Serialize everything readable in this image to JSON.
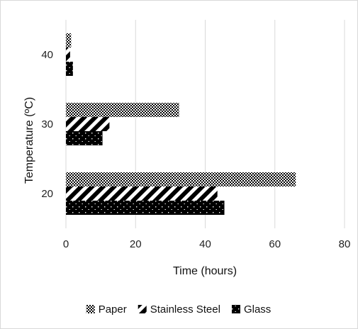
{
  "chart_data": {
    "type": "bar",
    "orientation": "horizontal",
    "categories": [
      "20",
      "30",
      "40"
    ],
    "series": [
      {
        "name": "Paper",
        "values": [
          66,
          32.5,
          1.5
        ],
        "pattern": "checker"
      },
      {
        "name": "Stainless Steel",
        "values": [
          43.5,
          12.5,
          1.2
        ],
        "pattern": "diagonal"
      },
      {
        "name": "Glass",
        "values": [
          45.5,
          10.5,
          2
        ],
        "pattern": "dots"
      }
    ],
    "xlabel": "Time (hours)",
    "ylabel": "Temperature (ºC)",
    "xlim": [
      0,
      80
    ],
    "xticks": [
      "0",
      "20",
      "40",
      "60",
      "80"
    ],
    "grid": true,
    "legend": "bottom",
    "colors": {
      "bar": "#000000",
      "grid": "#d9d9d9",
      "frame": "#d9d9d9"
    }
  }
}
